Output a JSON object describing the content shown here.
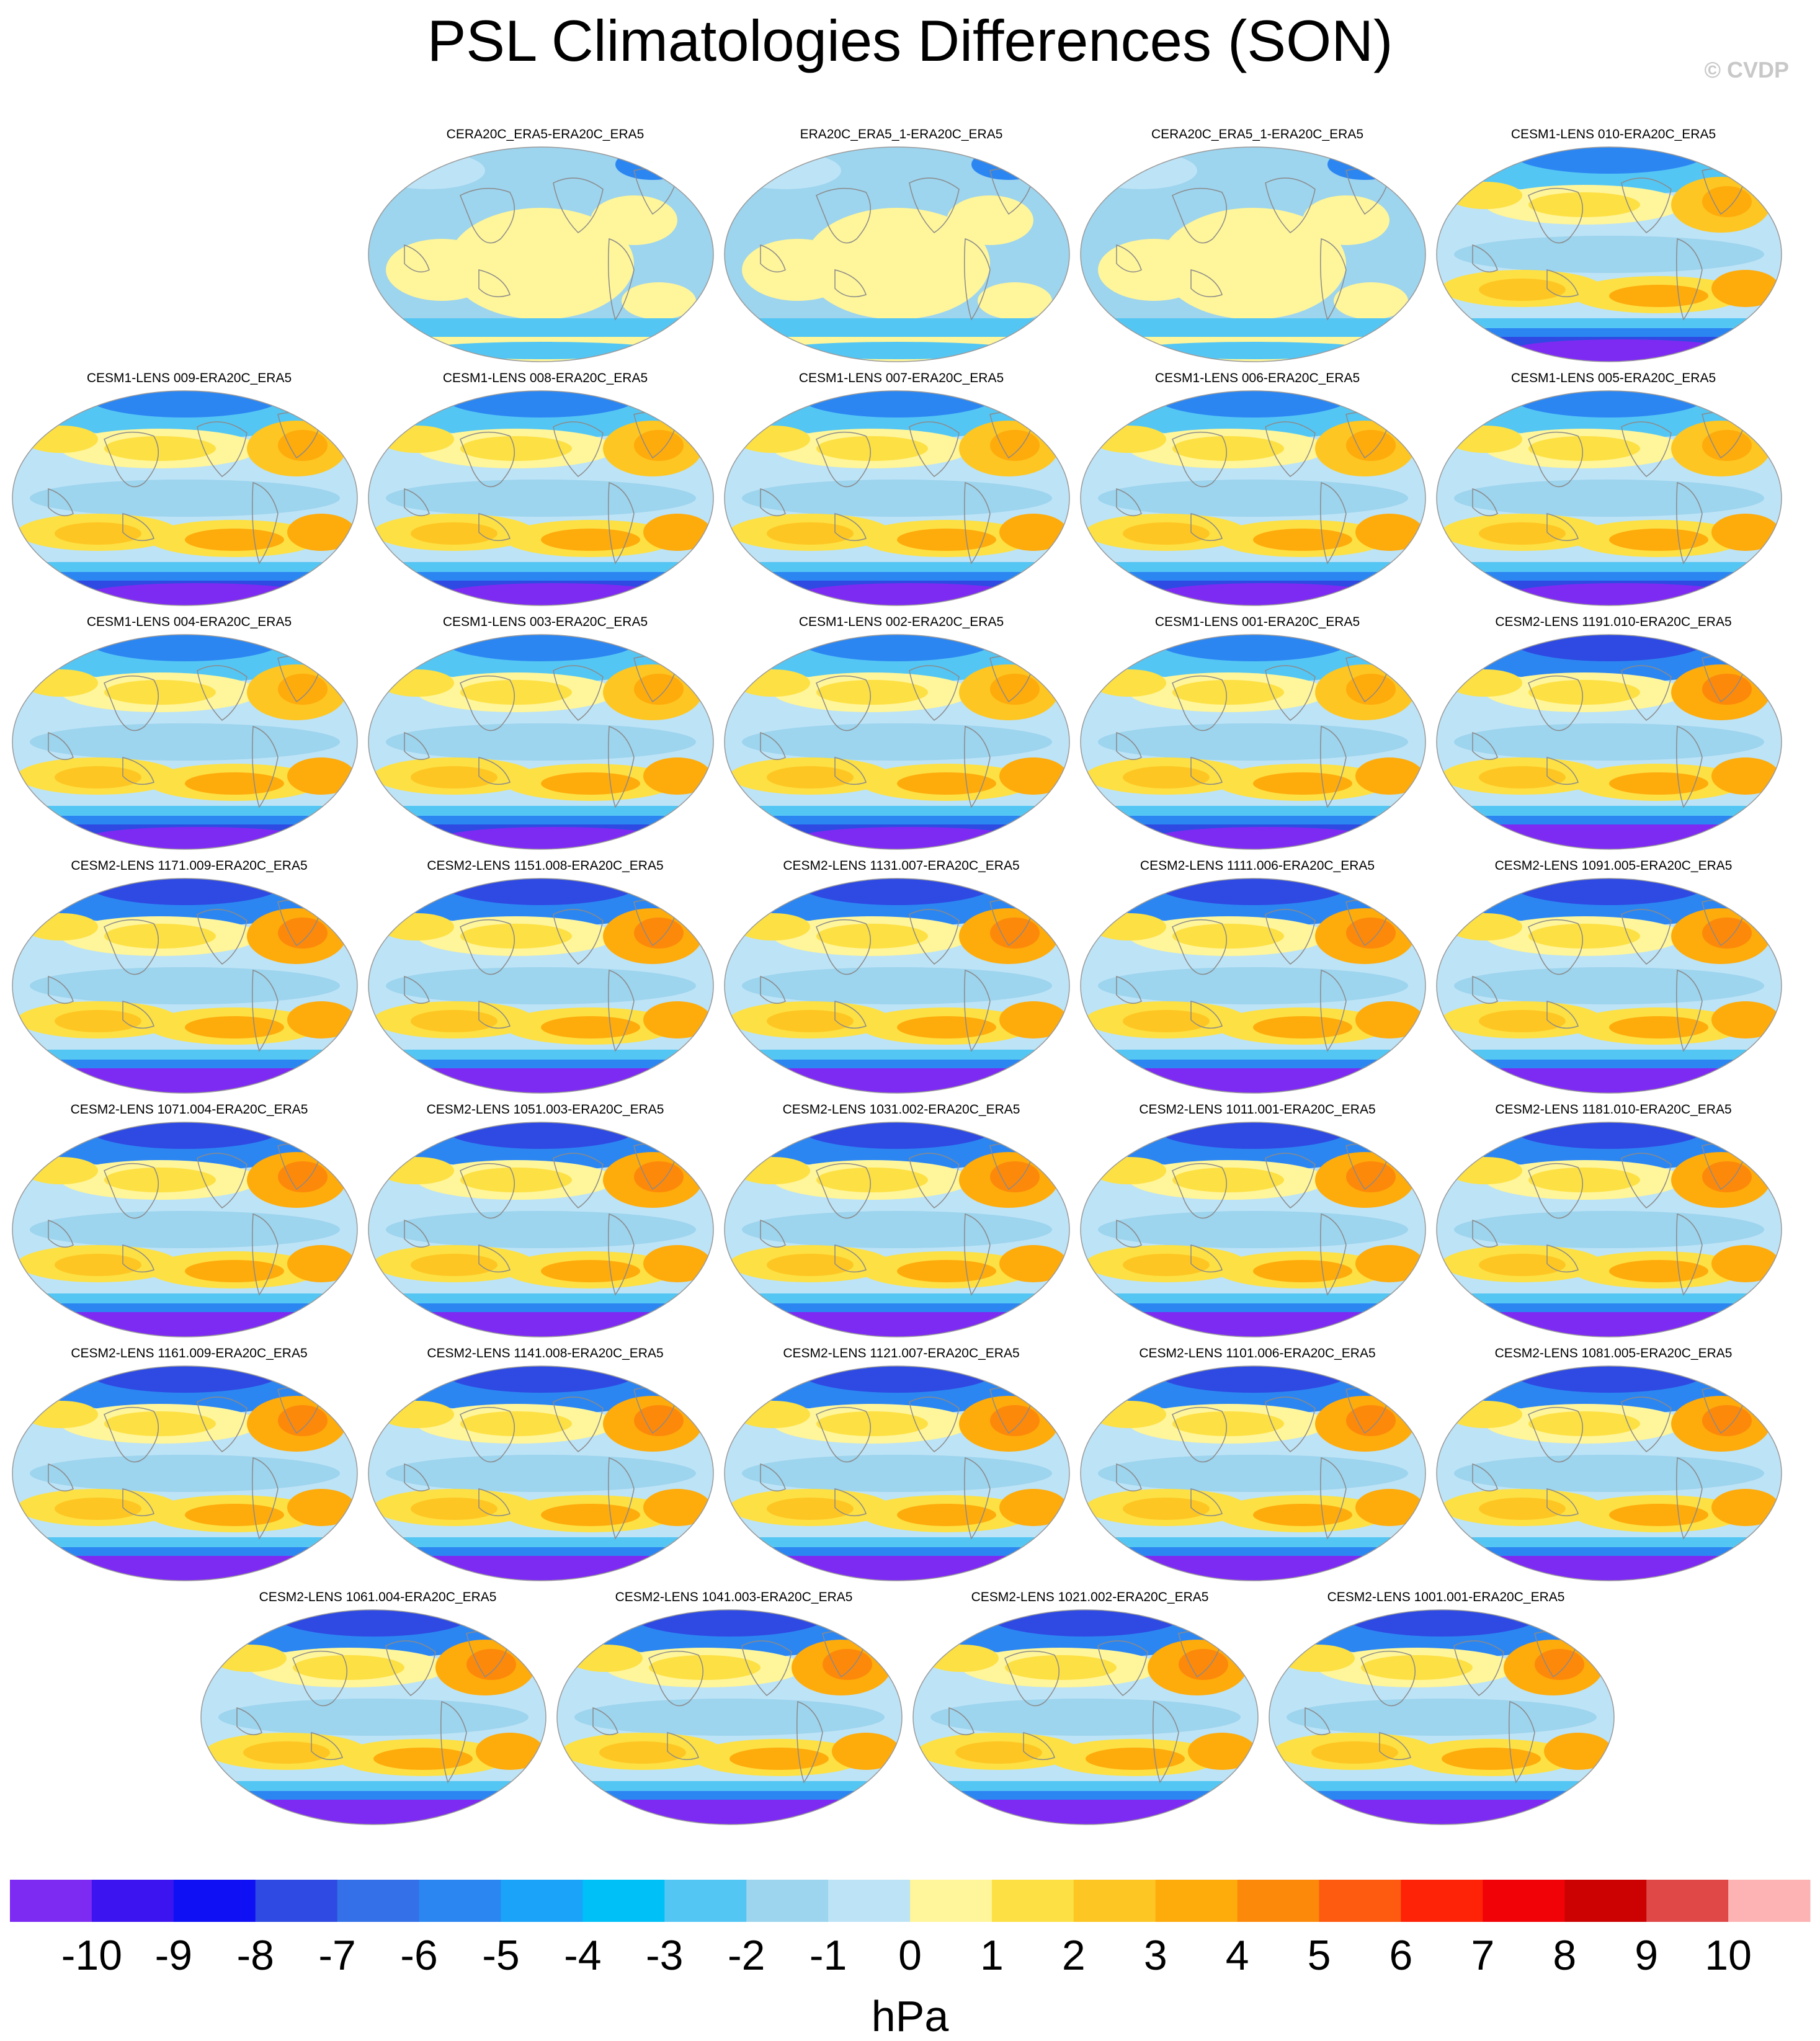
{
  "title": "PSL Climatologies Differences (SON)",
  "copyright": "© CVDP",
  "colorbar": {
    "label": "hPa",
    "ticks": [
      "-10",
      "-9",
      "-8",
      "-7",
      "-6",
      "-5",
      "-4",
      "-3",
      "-2",
      "-1",
      "0",
      "1",
      "2",
      "3",
      "4",
      "5",
      "6",
      "7",
      "8",
      "9",
      "10"
    ],
    "colors": [
      "#7d2bf2",
      "#3c14f0",
      "#1010f5",
      "#2e4ae2",
      "#3470e8",
      "#2c86f2",
      "#1aa3f8",
      "#00c0f8",
      "#54c6f4",
      "#9dd4ee",
      "#bde3f6",
      "#fff59a",
      "#fde043",
      "#fdc623",
      "#feab0c",
      "#fd890a",
      "#fe5a10",
      "#fe2207",
      "#f10206",
      "#cc0202",
      "#e04848",
      "#fdb3b3"
    ]
  },
  "panels": [
    {
      "row": 0,
      "col": 1,
      "title": "CERA20C_ERA5-ERA20C_ERA5",
      "type": "obs"
    },
    {
      "row": 0,
      "col": 2,
      "title": "ERA20C_ERA5_1-ERA20C_ERA5",
      "type": "obs"
    },
    {
      "row": 0,
      "col": 3,
      "title": "CERA20C_ERA5_1-ERA20C_ERA5",
      "type": "obs"
    },
    {
      "row": 0,
      "col": 4,
      "title": "CESM1-LENS 010-ERA20C_ERA5",
      "type": "cesm1"
    },
    {
      "row": 1,
      "col": 0,
      "title": "CESM1-LENS 009-ERA20C_ERA5",
      "type": "cesm1"
    },
    {
      "row": 1,
      "col": 1,
      "title": "CESM1-LENS 008-ERA20C_ERA5",
      "type": "cesm1"
    },
    {
      "row": 1,
      "col": 2,
      "title": "CESM1-LENS 007-ERA20C_ERA5",
      "type": "cesm1"
    },
    {
      "row": 1,
      "col": 3,
      "title": "CESM1-LENS 006-ERA20C_ERA5",
      "type": "cesm1"
    },
    {
      "row": 1,
      "col": 4,
      "title": "CESM1-LENS 005-ERA20C_ERA5",
      "type": "cesm1"
    },
    {
      "row": 2,
      "col": 0,
      "title": "CESM1-LENS 004-ERA20C_ERA5",
      "type": "cesm1"
    },
    {
      "row": 2,
      "col": 1,
      "title": "CESM1-LENS 003-ERA20C_ERA5",
      "type": "cesm1"
    },
    {
      "row": 2,
      "col": 2,
      "title": "CESM1-LENS 002-ERA20C_ERA5",
      "type": "cesm1"
    },
    {
      "row": 2,
      "col": 3,
      "title": "CESM1-LENS 001-ERA20C_ERA5",
      "type": "cesm1"
    },
    {
      "row": 2,
      "col": 4,
      "title": "CESM2-LENS 1191.010-ERA20C_ERA5",
      "type": "cesm2"
    },
    {
      "row": 3,
      "col": 0,
      "title": "CESM2-LENS 1171.009-ERA20C_ERA5",
      "type": "cesm2"
    },
    {
      "row": 3,
      "col": 1,
      "title": "CESM2-LENS 1151.008-ERA20C_ERA5",
      "type": "cesm2"
    },
    {
      "row": 3,
      "col": 2,
      "title": "CESM2-LENS 1131.007-ERA20C_ERA5",
      "type": "cesm2"
    },
    {
      "row": 3,
      "col": 3,
      "title": "CESM2-LENS 1111.006-ERA20C_ERA5",
      "type": "cesm2"
    },
    {
      "row": 3,
      "col": 4,
      "title": "CESM2-LENS 1091.005-ERA20C_ERA5",
      "type": "cesm2"
    },
    {
      "row": 4,
      "col": 0,
      "title": "CESM2-LENS 1071.004-ERA20C_ERA5",
      "type": "cesm2"
    },
    {
      "row": 4,
      "col": 1,
      "title": "CESM2-LENS 1051.003-ERA20C_ERA5",
      "type": "cesm2"
    },
    {
      "row": 4,
      "col": 2,
      "title": "CESM2-LENS 1031.002-ERA20C_ERA5",
      "type": "cesm2"
    },
    {
      "row": 4,
      "col": 3,
      "title": "CESM2-LENS 1011.001-ERA20C_ERA5",
      "type": "cesm2"
    },
    {
      "row": 4,
      "col": 4,
      "title": "CESM2-LENS 1181.010-ERA20C_ERA5",
      "type": "cesm2"
    },
    {
      "row": 5,
      "col": 0,
      "title": "CESM2-LENS 1161.009-ERA20C_ERA5",
      "type": "cesm2"
    },
    {
      "row": 5,
      "col": 1,
      "title": "CESM2-LENS 1141.008-ERA20C_ERA5",
      "type": "cesm2"
    },
    {
      "row": 5,
      "col": 2,
      "title": "CESM2-LENS 1121.007-ERA20C_ERA5",
      "type": "cesm2"
    },
    {
      "row": 5,
      "col": 3,
      "title": "CESM2-LENS 1101.006-ERA20C_ERA5",
      "type": "cesm2"
    },
    {
      "row": 5,
      "col": 4,
      "title": "CESM2-LENS 1081.005-ERA20C_ERA5",
      "type": "cesm2"
    },
    {
      "row": 6,
      "col": 0,
      "title": "CESM2-LENS 1061.004-ERA20C_ERA5",
      "type": "cesm2"
    },
    {
      "row": 6,
      "col": 1,
      "title": "CESM2-LENS 1041.003-ERA20C_ERA5",
      "type": "cesm2"
    },
    {
      "row": 6,
      "col": 2,
      "title": "CESM2-LENS 1021.002-ERA20C_ERA5",
      "type": "cesm2"
    },
    {
      "row": 6,
      "col": 3,
      "title": "CESM2-LENS 1001.001-ERA20C_ERA5",
      "type": "cesm2"
    }
  ]
}
